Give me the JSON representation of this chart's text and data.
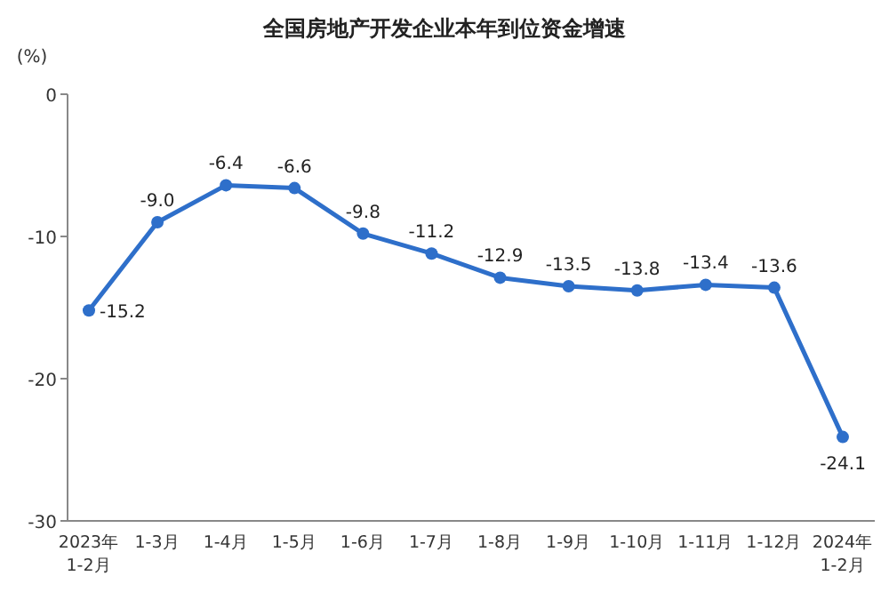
{
  "chart_data": {
    "type": "line",
    "title": "全国房地产开发企业本年到位资金增速",
    "ylabel": "(%)",
    "categories": [
      "2023年 1-2月",
      "1-3月",
      "1-4月",
      "1-5月",
      "1-6月",
      "1-7月",
      "1-8月",
      "1-9月",
      "1-10月",
      "1-11月",
      "1-12月",
      "2024年 1-2月"
    ],
    "series": [
      {
        "color": "#2e6fca",
        "values": [
          -15.2,
          -9.0,
          -6.4,
          -6.6,
          -9.8,
          -11.2,
          -12.9,
          -13.5,
          -13.8,
          -13.4,
          -13.6,
          -24.1
        ],
        "value_labels": [
          "-15.2",
          "-9.0",
          "-6.4",
          "-6.6",
          "-9.8",
          "-11.2",
          "-12.9",
          "-13.5",
          "-13.8",
          "-13.4",
          "-13.6",
          "-24.1"
        ]
      }
    ],
    "ylim": [
      -30,
      0
    ],
    "yticks": [
      0,
      -10,
      -20,
      -30
    ],
    "marker": "circle"
  }
}
